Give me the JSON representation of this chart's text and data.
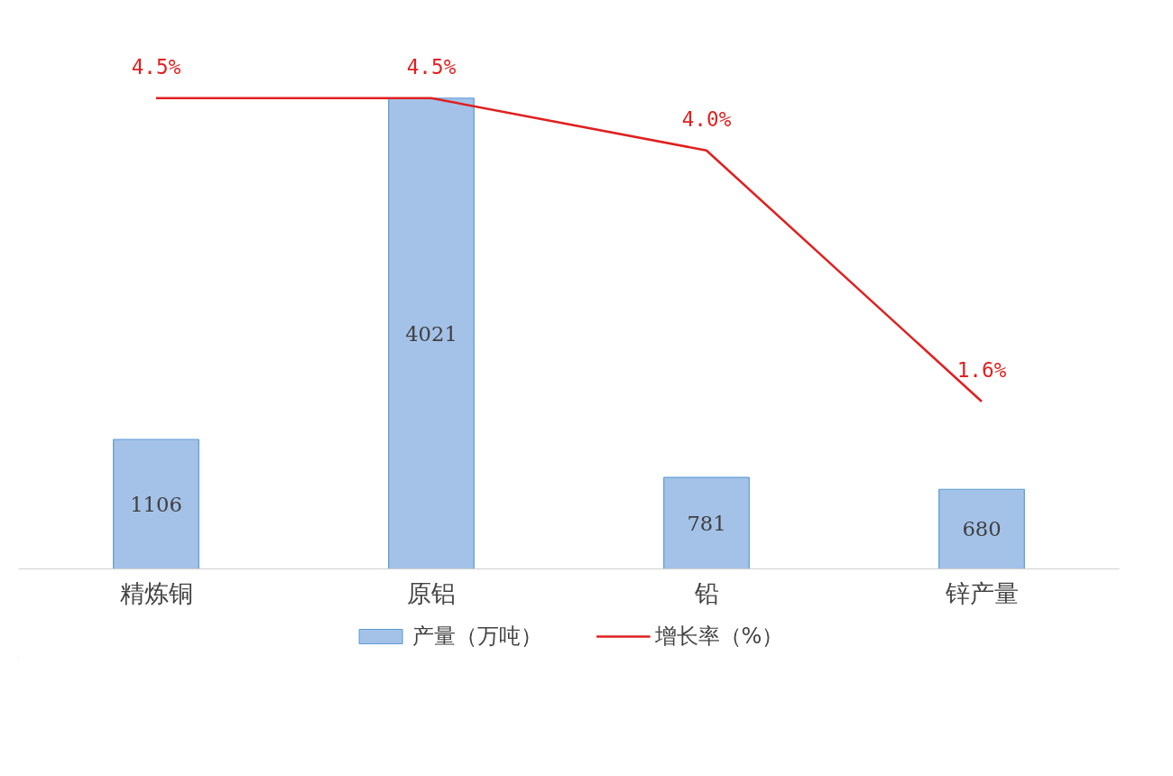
{
  "chart_data": {
    "type": "bar",
    "categories": [
      "精炼铜",
      "原铝",
      "铅",
      "锌产量"
    ],
    "series": [
      {
        "name": "产量（万吨）",
        "color": "#a4c2e8",
        "values": [
          1106,
          4021,
          781,
          680
        ],
        "value_labels": [
          "1106",
          "4021",
          "781",
          "680"
        ]
      },
      {
        "name": "增长率（%）",
        "type": "line",
        "axis": "y2",
        "color": "#e02020",
        "values": [
          4.5,
          4.5,
          4.0,
          1.6
        ],
        "value_labels": [
          "4.5%",
          "4.5%",
          "4.0%",
          "1.6%"
        ]
      }
    ],
    "tick_labels": "x",
    "grid": false,
    "legend": "bottom"
  }
}
